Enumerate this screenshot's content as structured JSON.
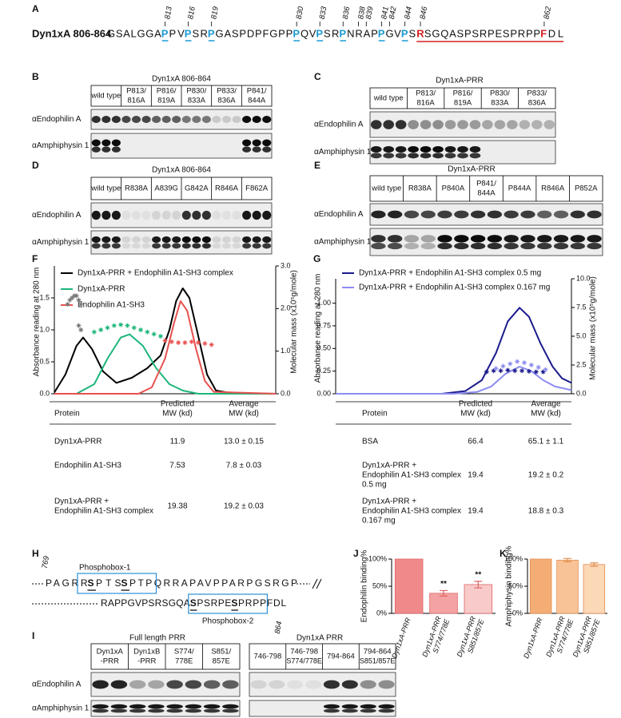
{
  "panel_a": {
    "label": "A",
    "title": "Dyn1xA 806-864",
    "sites": [
      813,
      816,
      819,
      830,
      833,
      836,
      838,
      839,
      841,
      842,
      844,
      846,
      862
    ],
    "segments": [
      {
        "text": "GSALGGA"
      },
      {
        "text": "P",
        "style": "blue"
      },
      {
        "text": "PV"
      },
      {
        "text": "P",
        "style": "blue"
      },
      {
        "text": "SR"
      },
      {
        "text": "P",
        "style": "blue"
      },
      {
        "text": "GASPDPFGPP"
      },
      {
        "text": "P",
        "style": "blue"
      },
      {
        "text": "QV"
      },
      {
        "text": "P",
        "style": "blue"
      },
      {
        "text": "SR"
      },
      {
        "text": "P",
        "style": "blue"
      },
      {
        "text": "NRAP"
      },
      {
        "text": "P",
        "style": "blue"
      },
      {
        "text": "GV"
      },
      {
        "text": "P",
        "style": "blue"
      },
      {
        "text": "S"
      },
      {
        "text": "R",
        "style": "red"
      },
      {
        "text": "SGQASPSRPESPRPP"
      },
      {
        "text": "F",
        "style": "red"
      },
      {
        "text": "DL"
      }
    ]
  },
  "panel_b": {
    "label": "B",
    "title": "Dyn1xA 806-864",
    "columns": [
      [
        "wild type"
      ],
      [
        "P813/",
        "816A"
      ],
      [
        "P816/",
        "819A"
      ],
      [
        "P830/",
        "833A"
      ],
      [
        "P833/",
        "836A"
      ],
      [
        "P841/",
        "844A"
      ]
    ],
    "rows": [
      "αEndophilin A",
      "αAmphiphysin 1"
    ]
  },
  "panel_c": {
    "label": "C",
    "title": "Dyn1xA-PRR",
    "columns": [
      [
        "wild type"
      ],
      [
        "P813/",
        "816A"
      ],
      [
        "P816/",
        "819A"
      ],
      [
        "P830/",
        "833A"
      ],
      [
        "P833/",
        "836A"
      ]
    ],
    "rows": [
      "αEndophilin A",
      "αAmphiphysin 1"
    ]
  },
  "panel_d": {
    "label": "D",
    "title": "Dyn1xA 806-864",
    "columns": [
      [
        "wild type"
      ],
      [
        "R838A"
      ],
      [
        "A839G"
      ],
      [
        "G842A"
      ],
      [
        "R846A"
      ],
      [
        "F862A"
      ]
    ],
    "rows": [
      "αEndophilin A",
      "αAmphiphysin 1"
    ]
  },
  "panel_e": {
    "label": "E",
    "title": "Dyn1xA-PRR",
    "columns": [
      [
        "wild type"
      ],
      [
        "R838A"
      ],
      [
        "P840A"
      ],
      [
        "P841/",
        "844A"
      ],
      [
        "P844A"
      ],
      [
        "R846A"
      ],
      [
        "P852A"
      ]
    ],
    "rows": [
      "αEndophilin A",
      "αAmphiphysin 1"
    ]
  },
  "table_f": {
    "header": [
      [
        "Protein"
      ],
      [
        "Predicted",
        "MW (kd)"
      ],
      [
        "Average",
        "MW (kd)"
      ]
    ],
    "rows": [
      [
        [
          "Dyn1xA-PRR"
        ],
        [
          11.9
        ],
        [
          "13.0 ± 0.15"
        ]
      ],
      [
        [
          "Endophilin A1-SH3"
        ],
        [
          7.53
        ],
        [
          "7.8 ± 0.03"
        ]
      ],
      [
        [
          "Dyn1xA-PRR +",
          "Endophilin A1-SH3 complex"
        ],
        [
          19.38
        ],
        [
          "19.2 ± 0.03"
        ]
      ]
    ]
  },
  "table_g": {
    "header": [
      [
        "Protein"
      ],
      [
        "Predicted",
        "MW (kd)"
      ],
      [
        "Average",
        "MW (kd)"
      ]
    ],
    "rows": [
      [
        [
          "BSA"
        ],
        [
          66.4
        ],
        [
          "65.1 ± 1.1"
        ]
      ],
      [
        [
          "Dyn1xA-PRR +",
          "Endophilin A1-SH3 complex",
          "0.5 mg"
        ],
        [
          19.4
        ],
        [
          "19.2 ± 0.2"
        ]
      ],
      [
        [
          "Dyn1xA-PRR +",
          "Endophilin A1-SH3 complex",
          "0.167 mg"
        ],
        [
          19.4
        ],
        [
          "18.8 ± 0.3"
        ]
      ]
    ]
  },
  "panel_h": {
    "label": "H",
    "start": "769",
    "end": "864",
    "box1": "Phosphobox-1",
    "box2": "Phosphobox-2",
    "line1": [
      {
        "text": "PAGRR"
      },
      {
        "text": "S",
        "style": "bold"
      },
      {
        "text": "PTS"
      },
      {
        "text": "S",
        "style": "bold"
      },
      {
        "text": "PTPQRRAPAVPPARPGSRGP"
      }
    ],
    "line2": [
      {
        "text": "RAPPGVPSRSGQA"
      },
      {
        "text": "S",
        "style": "bold"
      },
      {
        "text": "PSRPE"
      },
      {
        "text": "S",
        "style": "bold"
      },
      {
        "text": "PRPPFDL"
      }
    ]
  },
  "panel_i": {
    "label": "I",
    "rows": [
      "αEndophilin A",
      "αAmphiphysin 1"
    ],
    "groups": [
      {
        "title": "Full length PRR",
        "columns": [
          [
            "Dyn1xA",
            "-PRR"
          ],
          [
            "Dyn1xB",
            "-PRR"
          ],
          [
            "S774/",
            "778E"
          ],
          [
            "S851/",
            "857E"
          ]
        ]
      },
      {
        "title": "Dyn1xA PRR",
        "columns": [
          [
            "746-798"
          ],
          [
            "746-798",
            "S774/778E"
          ],
          [
            "794-864"
          ],
          [
            "794-864",
            "S851/857E"
          ]
        ]
      }
    ]
  },
  "chart_data": [
    {
      "type": "line",
      "label": "F",
      "ylabel": "Absorbance reading at 280 nm",
      "y2label": "Molecular mass (x10⁵g/mole)",
      "xlim": [
        0,
        100
      ],
      "ylim": [
        0,
        2
      ],
      "yticks": [
        {
          "value": 0,
          "label": "0.0"
        },
        0.5,
        {
          "value": 1,
          "label": "1.0"
        },
        1.5
      ],
      "y2lim": [
        0,
        3
      ],
      "y2ticks": [
        {
          "value": 0,
          "label": "0.0"
        },
        {
          "value": 1,
          "label": "1.0"
        },
        {
          "value": 2,
          "label": "2.0"
        },
        {
          "value": 3,
          "label": "3.0"
        }
      ],
      "series": [
        {
          "name": "Dyn1xA-PRR + Endophilin A1-SH3 complex",
          "color": "#000000",
          "x": [
            0,
            5,
            10,
            13,
            17,
            22,
            28,
            35,
            42,
            48,
            52,
            55,
            58,
            61,
            65,
            69,
            73,
            80,
            100
          ],
          "values": [
            0.02,
            0.3,
            0.75,
            0.88,
            0.7,
            0.35,
            0.17,
            0.25,
            0.4,
            0.6,
            1.0,
            1.45,
            1.65,
            1.5,
            0.9,
            0.3,
            0.05,
            0.01,
            0
          ]
        },
        {
          "name": "Dyn1xA-PRR",
          "color": "#1db57a",
          "x": [
            10,
            18,
            24,
            30,
            34,
            40,
            46,
            52,
            58,
            65,
            100
          ],
          "values": [
            0,
            0.15,
            0.55,
            0.88,
            0.93,
            0.75,
            0.4,
            0.15,
            0.05,
            0,
            0
          ]
        },
        {
          "name": "Endophilin A1-SH3",
          "color": "#e8504f",
          "x": [
            0,
            38,
            44,
            50,
            54,
            57,
            60,
            64,
            68,
            72,
            100
          ],
          "values": [
            0,
            0,
            0.1,
            0.55,
            1.1,
            1.45,
            1.3,
            0.7,
            0.2,
            0.03,
            0
          ]
        },
        {
          "color": "#777777",
          "axis": "y2",
          "marker": "star",
          "x": [
            6,
            7,
            8,
            9,
            10,
            11,
            12,
            11,
            12
          ],
          "values": [
            2.1,
            2.2,
            2.25,
            2.3,
            2.3,
            2.2,
            2.1,
            1.6,
            1.5
          ]
        },
        {
          "color": "#1db57a",
          "axis": "y2",
          "marker": "star",
          "x": [
            18,
            21,
            24,
            27,
            30,
            33,
            36,
            39,
            42,
            45,
            48
          ],
          "values": [
            1.45,
            1.5,
            1.55,
            1.6,
            1.62,
            1.6,
            1.55,
            1.5,
            1.45,
            1.4,
            1.35
          ]
        },
        {
          "color": "#e8504f",
          "axis": "y2",
          "marker": "star",
          "x": [
            50,
            53,
            56,
            59,
            62,
            65,
            68,
            71
          ],
          "values": [
            1.25,
            1.22,
            1.2,
            1.2,
            1.22,
            1.2,
            1.18,
            1.15
          ]
        }
      ]
    },
    {
      "type": "line",
      "label": "G",
      "ylabel": "Absorbance reading at 280 nm",
      "y2label": "Molecular mass (x10⁵g/mole)",
      "xlim": [
        0,
        100
      ],
      "ylim": [
        0,
        1.27
      ],
      "yticks": [
        {
          "value": 0,
          "label": "0.00"
        },
        0.25,
        {
          "value": 0.5,
          "label": "0.50"
        },
        0.75,
        {
          "value": 1,
          "label": "1.00"
        }
      ],
      "y2lim": [
        0,
        10
      ],
      "y2ticks": [
        {
          "value": 0,
          "label": "0.0"
        },
        2.5,
        {
          "value": 5,
          "label": "5.0"
        },
        7.5,
        {
          "value": 10,
          "label": "10.0"
        }
      ],
      "series": [
        {
          "name": "Dyn1xA-PRR + Endophilin A1-SH3 complex 0.5 mg",
          "color": "#1a1a8c",
          "x": [
            0,
            45,
            55,
            62,
            68,
            73,
            78,
            82,
            87,
            92,
            96,
            100
          ],
          "values": [
            0,
            0,
            0.03,
            0.15,
            0.45,
            0.8,
            0.95,
            0.85,
            0.55,
            0.3,
            0.17,
            0.12
          ]
        },
        {
          "name": "Dyn1xA-PRR + Endophilin A1-SH3 complex 0.167 mg",
          "color": "#8c8cf0",
          "x": [
            0,
            50,
            60,
            66,
            72,
            78,
            83,
            88,
            93,
            100
          ],
          "values": [
            0,
            0,
            0.02,
            0.08,
            0.22,
            0.3,
            0.25,
            0.15,
            0.08,
            0.04
          ]
        },
        {
          "color": "#1a1a8c",
          "axis": "y2",
          "marker": "star",
          "x": [
            64,
            67,
            70,
            73,
            76,
            79,
            82,
            85,
            88
          ],
          "values": [
            1.9,
            2.0,
            2.0,
            2.05,
            2.0,
            2.0,
            1.95,
            1.9,
            1.9
          ]
        },
        {
          "color": "#8c8cf0",
          "axis": "y2",
          "marker": "star",
          "x": [
            68,
            71,
            74,
            77,
            80,
            83,
            86,
            89
          ],
          "values": [
            2.2,
            2.4,
            2.6,
            2.8,
            2.7,
            2.5,
            2.3,
            2.1
          ]
        }
      ]
    },
    {
      "type": "bar",
      "label": "J",
      "ylabel": "Endophilin binding%",
      "categories": [
        [
          "Dyn1xA-PRR"
        ],
        [
          "Dyn1xA-PRR",
          "S774/778E"
        ],
        [
          "Dyn1xA-PRR",
          "S851/857E"
        ]
      ],
      "values": [
        100,
        37,
        53
      ],
      "errors": [
        null,
        5,
        6
      ],
      "annotations": [
        null,
        "**",
        "**"
      ],
      "colors": [
        "#f08a8a",
        "#f4a3a3",
        "#f8caca"
      ],
      "edge_color": "#e06464",
      "ylim": [
        0,
        100
      ],
      "yticks": [
        {
          "value": 0,
          "label": "0%"
        },
        {
          "value": 50,
          "label": "50%"
        },
        {
          "value": 100,
          "label": "100%"
        }
      ]
    },
    {
      "type": "bar",
      "label": "K",
      "ylabel": "Amphiphysin binding%",
      "categories": [
        [
          "Dyn1xA-PRR"
        ],
        [
          "Dyn1xA-PRR",
          "S774/778E"
        ],
        [
          "Dyn1xA-PRR",
          "S851/857E"
        ]
      ],
      "values": [
        100,
        98,
        90
      ],
      "errors": [
        null,
        3,
        3
      ],
      "annotations": [
        null,
        null,
        null
      ],
      "colors": [
        "#f5ad76",
        "#f8c396",
        "#fbd8b6"
      ],
      "edge_color": "#e38d4f",
      "ylim": [
        0,
        100
      ],
      "yticks": [
        {
          "value": 0,
          "label": "0%"
        },
        {
          "value": 50,
          "label": "50%"
        },
        {
          "value": 100,
          "label": "100%"
        }
      ]
    }
  ]
}
